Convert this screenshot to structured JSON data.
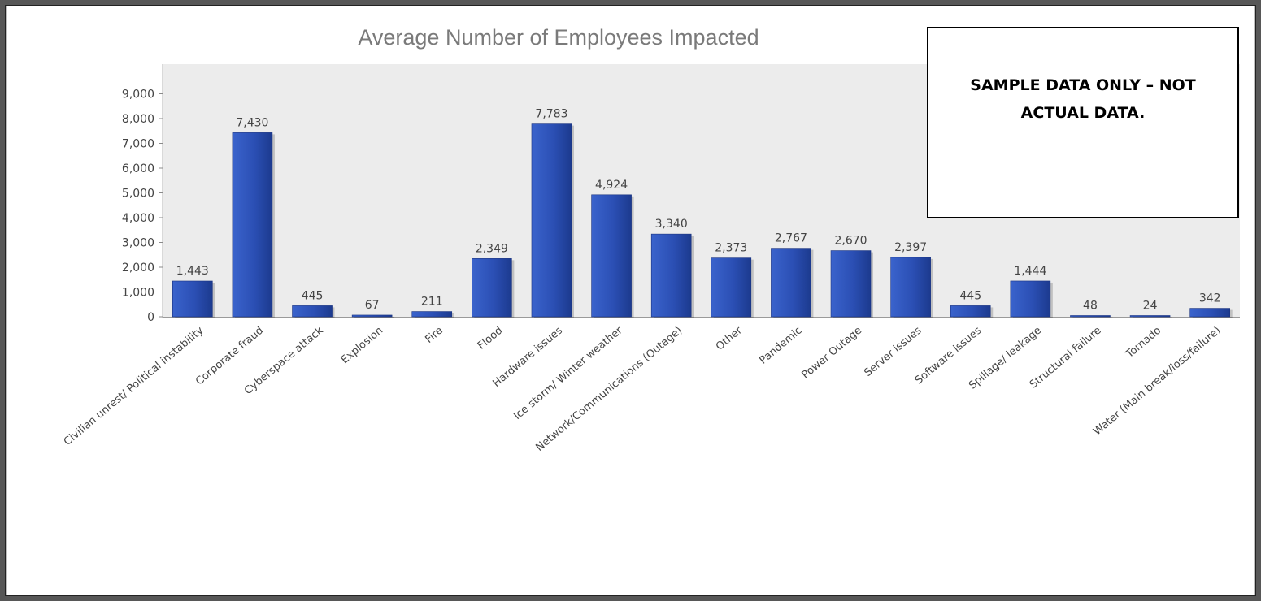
{
  "chart_data": {
    "type": "bar",
    "title": "Average Number of Employees Impacted",
    "xlabel": "",
    "ylabel": "",
    "ylim": [
      0,
      10000
    ],
    "yticks": [
      0,
      1000,
      2000,
      3000,
      4000,
      5000,
      6000,
      7000,
      8000,
      9000
    ],
    "ytick_labels": [
      "0",
      "1,000",
      "2,000",
      "3,000",
      "4,000",
      "5,000",
      "6,000",
      "7,000",
      "8,000",
      "9,000"
    ],
    "grid": false,
    "legend": "none",
    "categories": [
      "Civilian unrest/ Political instability",
      "Corporate fraud",
      "Cyberspace attack",
      "Explosion",
      "Fire",
      "Flood",
      "Hardware issues",
      "Ice storm/ Winter weather",
      "Network/Communications (Outage)",
      "Other",
      "Pandemic",
      "Power Outage",
      "Server issues",
      "Software issues",
      "Spillage/ leakage",
      "Structural failure",
      "Tornado",
      "Water (Main break/loss/failure)"
    ],
    "values": [
      1443,
      7430,
      445,
      67,
      211,
      2349,
      7783,
      4924,
      3340,
      2373,
      2767,
      2670,
      2397,
      445,
      1444,
      48,
      24,
      342
    ],
    "value_labels": [
      "1,443",
      "7,430",
      "445",
      "67",
      "211",
      "2,349",
      "7,783",
      "4,924",
      "3,340",
      "2,373",
      "2,767",
      "2,670",
      "2,397",
      "445",
      "1,444",
      "48",
      "24",
      "342"
    ],
    "bar_color": "#2f54b8",
    "plot_background": "#ececec"
  },
  "note": {
    "text": "SAMPLE DATA ONLY – NOT ACTUAL DATA."
  }
}
